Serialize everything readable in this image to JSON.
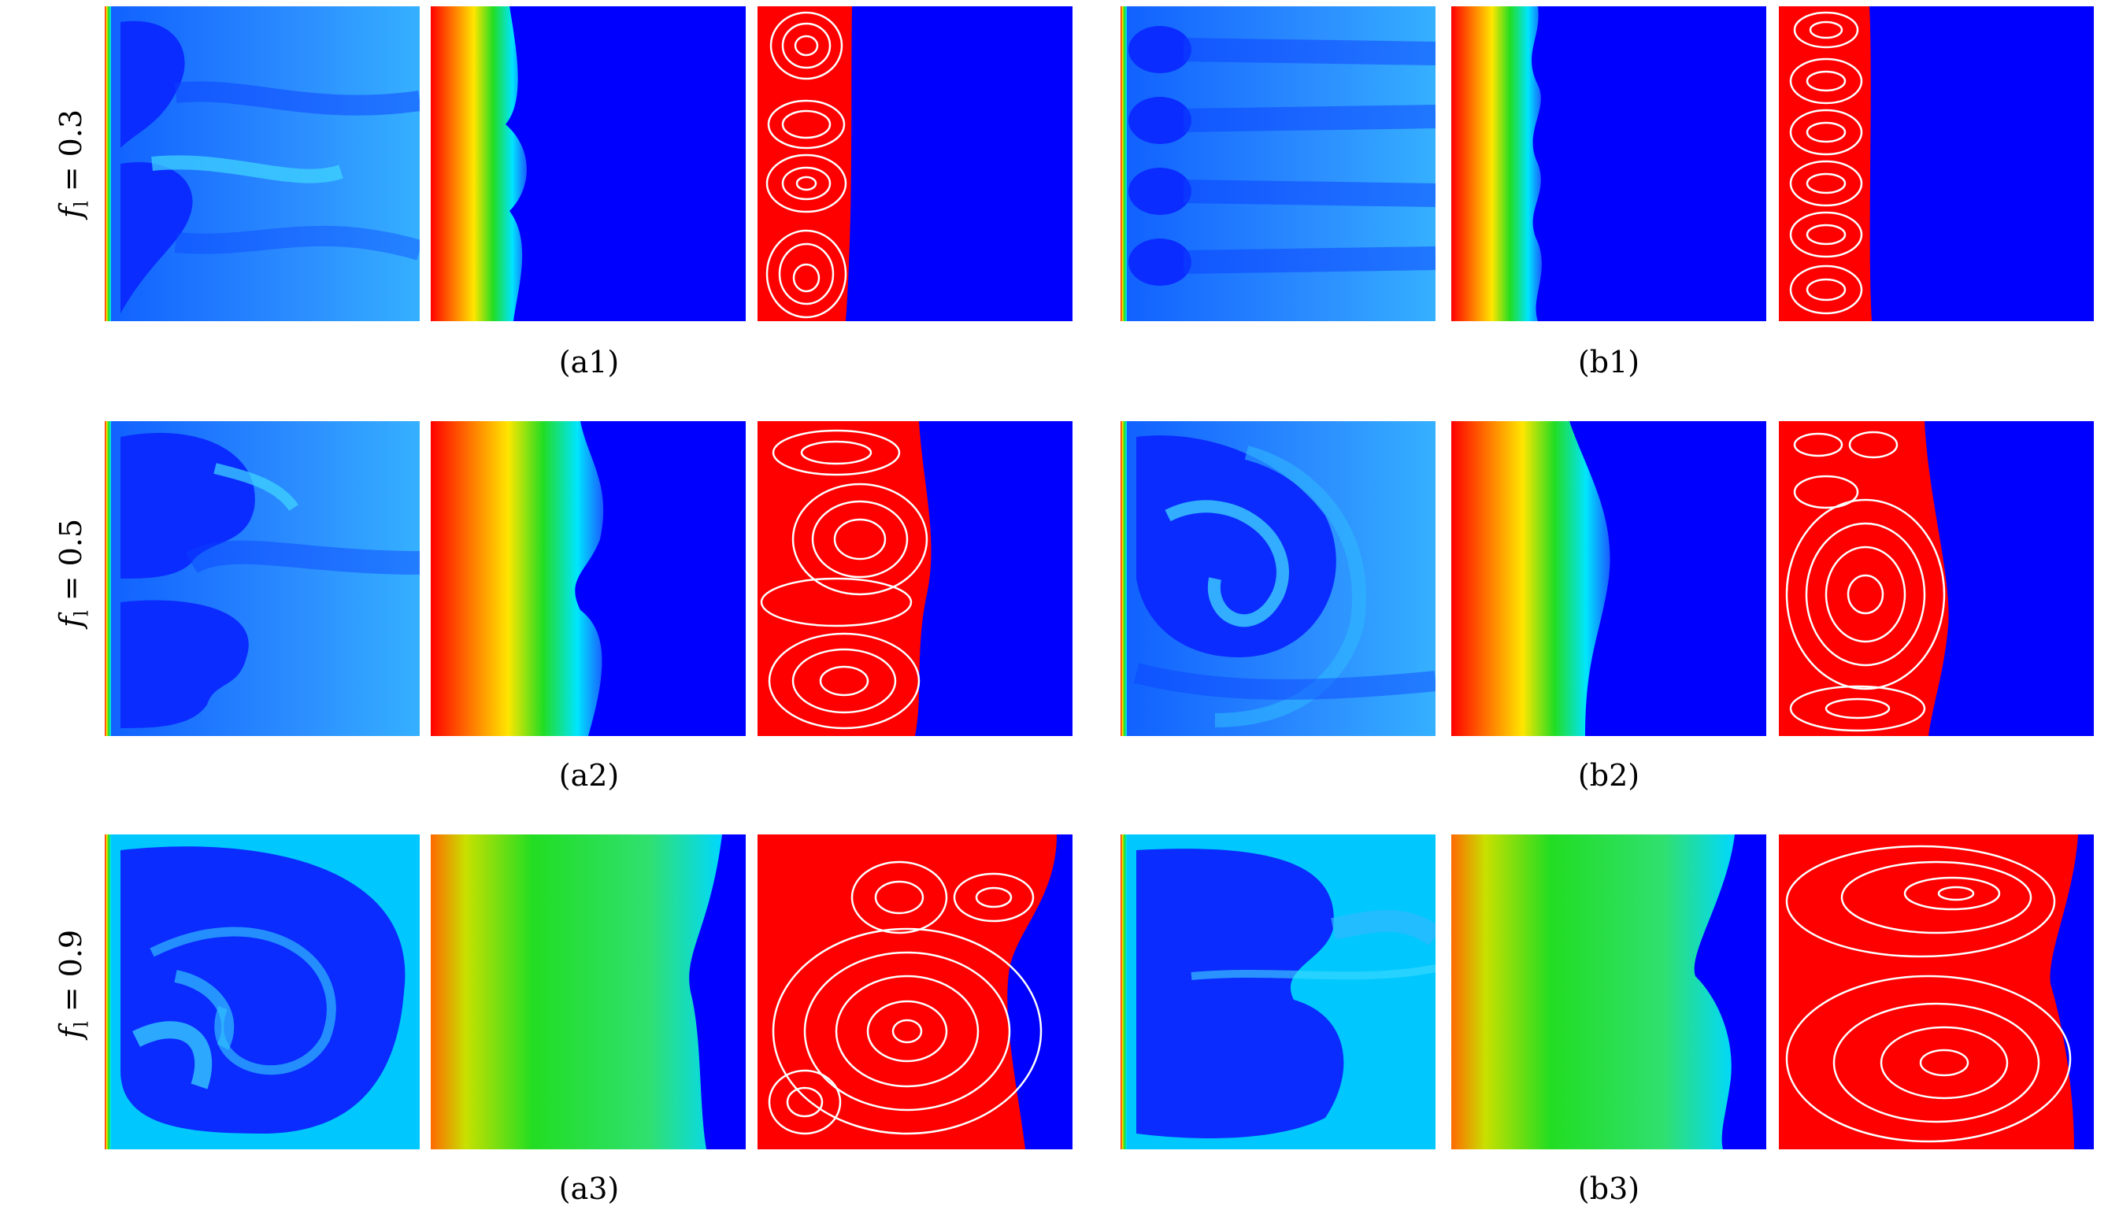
{
  "rows": [
    {
      "label_var": "f",
      "label_sub": "l",
      "label_rest": " = 0.3"
    },
    {
      "label_var": "f",
      "label_sub": "l",
      "label_rest": " = 0.5"
    },
    {
      "label_var": "f",
      "label_sub": "l",
      "label_rest": " = 0.9"
    }
  ],
  "captions": {
    "a1": "(a1)",
    "b1": "(b1)",
    "a2": "(a2)",
    "b2": "(b2)",
    "a3": "(a3)",
    "b3": "(b3)"
  },
  "colors": {
    "deep_blue": "#0000ff",
    "mid_blue": "#1a5cff",
    "cyan": "#00e5ff",
    "green": "#22dd22",
    "yellow": "#ffe600",
    "orange": "#ff8000",
    "red": "#ff0000",
    "streamline": "#ffffff"
  }
}
